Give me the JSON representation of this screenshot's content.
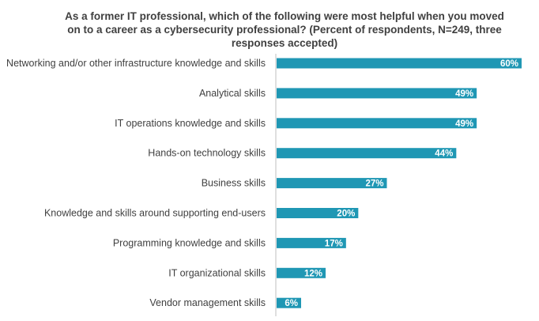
{
  "chart_data": {
    "type": "bar",
    "orientation": "horizontal",
    "title": "As a former IT professional, which of the following were most helpful when you moved on to a career as a cybersecurity professional? (Percent of respondents, N=249, three responses accepted)",
    "categories": [
      "Networking and/or other infrastructure knowledge and skills",
      "Analytical skills",
      "IT operations knowledge and skills",
      "Hands-on technology skills",
      "Business skills",
      "Knowledge and skills around supporting end-users",
      "Programming knowledge and skills",
      "IT organizational skills",
      "Vendor management skills"
    ],
    "values": [
      60,
      49,
      49,
      44,
      27,
      20,
      17,
      12,
      6
    ],
    "value_labels": [
      "60%",
      "49%",
      "49%",
      "44%",
      "27%",
      "20%",
      "17%",
      "12%",
      "6%"
    ],
    "xlim": [
      0,
      60
    ],
    "grid": false,
    "legend": "none",
    "bar_color": "#1f97b4"
  }
}
